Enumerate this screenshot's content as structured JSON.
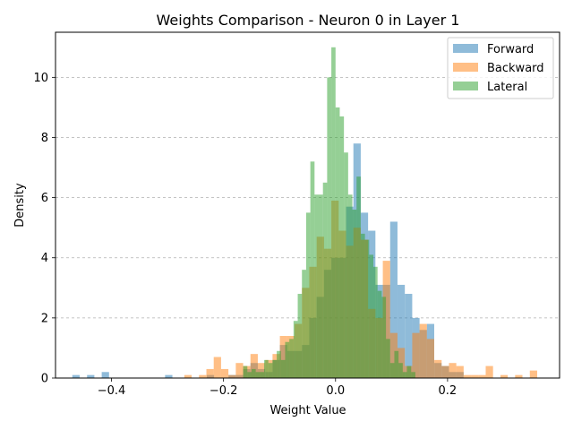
{
  "chart_data": {
    "type": "histogram",
    "title": "Weights Comparison - Neuron 0 in Layer 1",
    "xlabel": "Weight Value",
    "ylabel": "Density",
    "xlim": [
      -0.5,
      0.4
    ],
    "ylim": [
      0,
      11.5
    ],
    "xticks": [
      -0.4,
      -0.2,
      0.0,
      0.2
    ],
    "xtick_labels": [
      "−0.4",
      "−0.2",
      "0.0",
      "0.2"
    ],
    "yticks": [
      0,
      2,
      4,
      6,
      8,
      10
    ],
    "ytick_labels": [
      "0",
      "2",
      "4",
      "6",
      "8",
      "10"
    ],
    "grid": "y-dashed",
    "legend_position": "top-right",
    "series": [
      {
        "name": "Forward",
        "color": "#1f77b4",
        "bin_width": 0.0131,
        "bins": [
          [
            -0.47,
            0.1
          ],
          [
            -0.4437,
            0.1
          ],
          [
            -0.4175,
            0.2
          ],
          [
            -0.3044,
            0.1
          ],
          [
            -0.23,
            0.1
          ],
          [
            -0.1912,
            0.1
          ],
          [
            -0.1781,
            0.1
          ],
          [
            -0.165,
            0.3
          ],
          [
            -0.1519,
            0.5
          ],
          [
            -0.1388,
            0.3
          ],
          [
            -0.1256,
            0.2
          ],
          [
            -0.1125,
            0.6
          ],
          [
            -0.0994,
            1.1
          ],
          [
            -0.0863,
            0.9
          ],
          [
            -0.0731,
            0.9
          ],
          [
            -0.06,
            1.1
          ],
          [
            -0.0469,
            2.0
          ],
          [
            -0.0337,
            2.7
          ],
          [
            -0.0206,
            3.6
          ],
          [
            -0.0075,
            4.0
          ],
          [
            0.0056,
            4.0
          ],
          [
            0.0188,
            5.7
          ],
          [
            0.0319,
            7.8
          ],
          [
            0.045,
            5.5
          ],
          [
            0.0581,
            4.9
          ],
          [
            0.0713,
            3.1
          ],
          [
            0.0844,
            3.1
          ],
          [
            0.0975,
            5.2
          ],
          [
            0.1106,
            3.1
          ],
          [
            0.1238,
            2.8
          ],
          [
            0.1369,
            2.0
          ],
          [
            0.15,
            1.6
          ],
          [
            0.1631,
            1.8
          ],
          [
            0.1763,
            0.5
          ],
          [
            0.1894,
            0.4
          ],
          [
            0.2025,
            0.2
          ],
          [
            0.2156,
            0.2
          ]
        ]
      },
      {
        "name": "Backward",
        "color": "#ff7f0e",
        "bin_width": 0.0131,
        "bins": [
          [
            -0.27,
            0.1
          ],
          [
            -0.2438,
            0.1
          ],
          [
            -0.2306,
            0.3
          ],
          [
            -0.2175,
            0.7
          ],
          [
            -0.2044,
            0.3
          ],
          [
            -0.1913,
            0.1
          ],
          [
            -0.1781,
            0.5
          ],
          [
            -0.165,
            0.4
          ],
          [
            -0.1519,
            0.8
          ],
          [
            -0.1388,
            0.5
          ],
          [
            -0.1256,
            0.6
          ],
          [
            -0.1125,
            0.8
          ],
          [
            -0.0994,
            1.4
          ],
          [
            -0.0863,
            1.4
          ],
          [
            -0.0731,
            1.8
          ],
          [
            -0.06,
            3.0
          ],
          [
            -0.0469,
            3.7
          ],
          [
            -0.0337,
            4.7
          ],
          [
            -0.0206,
            4.3
          ],
          [
            -0.0075,
            5.9
          ],
          [
            0.0056,
            4.9
          ],
          [
            0.0188,
            4.4
          ],
          [
            0.0319,
            5.0
          ],
          [
            0.045,
            4.6
          ],
          [
            0.0581,
            2.3
          ],
          [
            0.0713,
            2.0
          ],
          [
            0.0844,
            3.9
          ],
          [
            0.0975,
            1.5
          ],
          [
            0.1106,
            1.0
          ],
          [
            0.1238,
            0.4
          ],
          [
            0.1369,
            1.5
          ],
          [
            0.15,
            1.8
          ],
          [
            0.1631,
            1.3
          ],
          [
            0.1763,
            0.6
          ],
          [
            0.1894,
            0.4
          ],
          [
            0.2025,
            0.5
          ],
          [
            0.2156,
            0.4
          ],
          [
            0.2288,
            0.1
          ],
          [
            0.2419,
            0.1
          ],
          [
            0.255,
            0.1
          ],
          [
            0.2681,
            0.4
          ],
          [
            0.2944,
            0.1
          ],
          [
            0.3206,
            0.1
          ],
          [
            0.3469,
            0.25
          ]
        ]
      },
      {
        "name": "Lateral",
        "color": "#2ca02c",
        "bin_width": 0.0075,
        "bins": [
          [
            -0.165,
            0.4
          ],
          [
            -0.1575,
            0.2
          ],
          [
            -0.15,
            0.3
          ],
          [
            -0.1425,
            0.2
          ],
          [
            -0.135,
            0.2
          ],
          [
            -0.1275,
            0.6
          ],
          [
            -0.12,
            0.5
          ],
          [
            -0.1125,
            0.6
          ],
          [
            -0.105,
            0.9
          ],
          [
            -0.0975,
            0.6
          ],
          [
            -0.09,
            1.2
          ],
          [
            -0.0825,
            1.3
          ],
          [
            -0.075,
            1.9
          ],
          [
            -0.0675,
            2.8
          ],
          [
            -0.06,
            3.6
          ],
          [
            -0.0525,
            5.5
          ],
          [
            -0.045,
            7.2
          ],
          [
            -0.0375,
            6.1
          ],
          [
            -0.03,
            6.1
          ],
          [
            -0.0225,
            6.5
          ],
          [
            -0.015,
            10.0
          ],
          [
            -0.0075,
            11.0
          ],
          [
            0.0,
            9.0
          ],
          [
            0.0075,
            8.7
          ],
          [
            0.015,
            7.5
          ],
          [
            0.0225,
            6.1
          ],
          [
            0.03,
            5.6
          ],
          [
            0.0375,
            6.7
          ],
          [
            0.045,
            4.8
          ],
          [
            0.0525,
            4.6
          ],
          [
            0.06,
            4.1
          ],
          [
            0.0675,
            3.7
          ],
          [
            0.075,
            2.9
          ],
          [
            0.0825,
            2.7
          ],
          [
            0.09,
            1.3
          ],
          [
            0.0975,
            0.5
          ],
          [
            0.105,
            0.9
          ],
          [
            0.1125,
            0.5
          ],
          [
            0.12,
            0.2
          ],
          [
            0.1275,
            0.4
          ],
          [
            0.135,
            0.2
          ]
        ]
      }
    ]
  }
}
